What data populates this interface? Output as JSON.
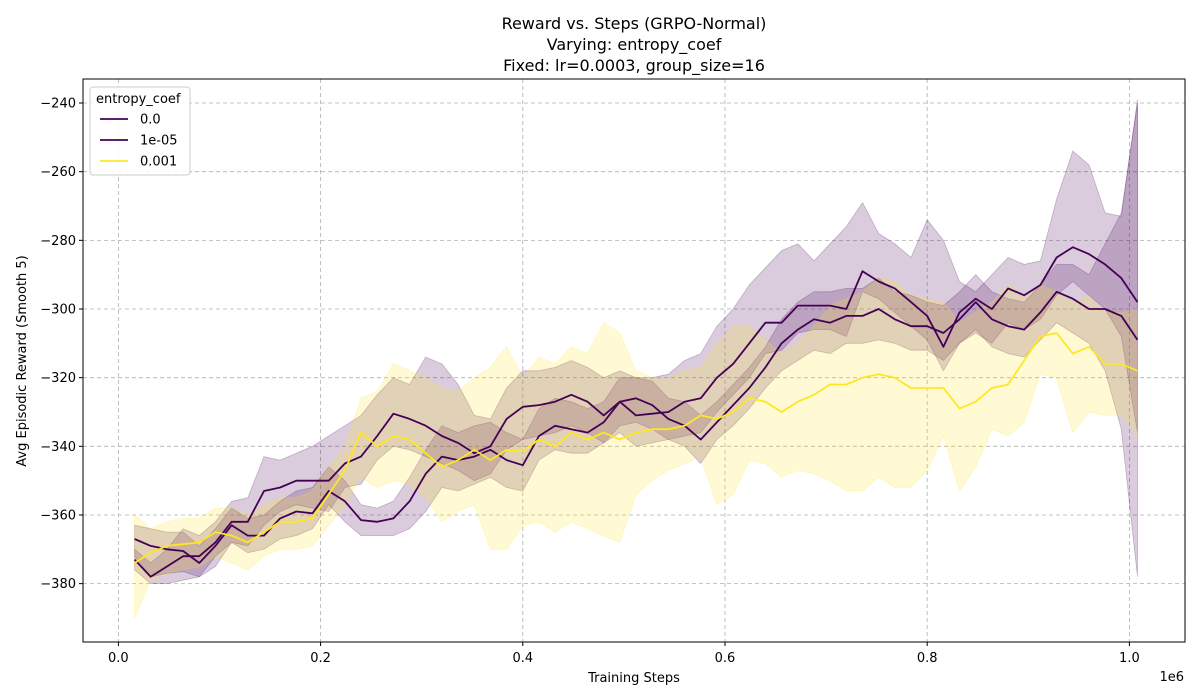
{
  "chart_data": {
    "type": "line",
    "title_lines": [
      "Reward vs. Steps (GRPO-Normal)",
      "Varying: entropy_coef",
      "Fixed: lr=0.0003, group_size=16"
    ],
    "xlabel": "Training Steps",
    "ylabel": "Avg Episodic Reward (Smooth 5)",
    "x_offset_label": "1e6",
    "xlim": [
      -0.035,
      1.055
    ],
    "ylim": [
      -397,
      -233
    ],
    "xticks": [
      0.0,
      0.2,
      0.4,
      0.6,
      0.8,
      1.0
    ],
    "xtick_labels": [
      "0.0",
      "0.2",
      "0.4",
      "0.6",
      "0.8",
      "1.0"
    ],
    "yticks": [
      -380,
      -360,
      -340,
      -320,
      -300,
      -280,
      -260,
      -240
    ],
    "ytick_labels": [
      "−380",
      "−360",
      "−340",
      "−320",
      "−300",
      "−280",
      "−260",
      "−240"
    ],
    "grid": true,
    "legend": {
      "title": "entropy_coef",
      "placement": "upper-left"
    },
    "x": [
      0.016,
      0.032,
      0.048,
      0.064,
      0.08,
      0.096,
      0.112,
      0.128,
      0.144,
      0.16,
      0.176,
      0.192,
      0.208,
      0.224,
      0.24,
      0.256,
      0.272,
      0.288,
      0.304,
      0.32,
      0.336,
      0.352,
      0.368,
      0.384,
      0.4,
      0.416,
      0.432,
      0.448,
      0.464,
      0.48,
      0.496,
      0.512,
      0.528,
      0.544,
      0.56,
      0.576,
      0.592,
      0.608,
      0.624,
      0.64,
      0.656,
      0.672,
      0.688,
      0.704,
      0.72,
      0.736,
      0.752,
      0.768,
      0.784,
      0.8,
      0.816,
      0.832,
      0.848,
      0.864,
      0.88,
      0.896,
      0.912,
      0.928,
      0.944,
      0.96,
      0.976,
      0.992,
      1.008
    ],
    "series": [
      {
        "name": "0.0",
        "color": "#440154",
        "band_color": "#440154",
        "band_opacity": 0.2,
        "values": [
          -367,
          -369,
          -370,
          -370.5,
          -374,
          -369,
          -363,
          -366,
          -366,
          -361,
          -359,
          -359.5,
          -353,
          -356,
          -361.5,
          -362,
          -361,
          -356,
          -348,
          -343,
          -344,
          -343,
          -341,
          -344,
          -345.5,
          -337,
          -334,
          -335,
          -336,
          -333,
          -327,
          -326,
          -328,
          -332,
          -334,
          -338,
          -333,
          -328,
          -323,
          -317,
          -310,
          -306,
          -303,
          -304,
          -302,
          -302,
          -300,
          -303,
          -305,
          -305,
          -307,
          -303,
          -298,
          -303,
          -305,
          -306,
          -301,
          -295,
          -297,
          -300,
          -300,
          -302,
          -309
        ],
        "lower": [
          -372,
          -378,
          -377,
          -376.5,
          -378,
          -375,
          -368,
          -371,
          -370,
          -367,
          -366,
          -364,
          -357,
          -362,
          -366,
          -366,
          -366,
          -364,
          -359,
          -352,
          -353,
          -351,
          -349,
          -352,
          -353,
          -344,
          -341,
          -342,
          -342,
          -339,
          -334,
          -333,
          -335,
          -338,
          -340,
          -345,
          -338,
          -334,
          -329,
          -323,
          -318,
          -315,
          -312,
          -313,
          -310,
          -310,
          -309,
          -310,
          -312,
          -312,
          -315,
          -310,
          -306,
          -311,
          -313,
          -314,
          -309,
          -304,
          -307,
          -310,
          -318,
          -335,
          -378
        ],
        "upper": [
          -363,
          -364,
          -365,
          -365,
          -369,
          -364,
          -358,
          -361,
          -360,
          -356,
          -353,
          -352,
          -346,
          -350,
          -357,
          -358,
          -356,
          -349,
          -341,
          -334,
          -336,
          -334,
          -333,
          -336,
          -338,
          -329,
          -326,
          -327,
          -329,
          -327,
          -320,
          -320,
          -321,
          -326,
          -327,
          -331,
          -327,
          -322,
          -317,
          -311,
          -303,
          -298,
          -295,
          -295,
          -294,
          -294,
          -291,
          -295,
          -296,
          -298,
          -299,
          -295,
          -290,
          -295,
          -297,
          -298,
          -293,
          -287,
          -287,
          -290,
          -281,
          -272,
          -240
        ]
      },
      {
        "name": "1e-05",
        "color": "#440154",
        "band_color": "#440154",
        "band_opacity": 0.2,
        "values": [
          -373,
          -378,
          -375,
          -372,
          -372,
          -368,
          -362,
          -362,
          -353,
          -352,
          -350,
          -350,
          -350,
          -345,
          -343,
          -337,
          -330.5,
          -332,
          -334,
          -337,
          -339,
          -342,
          -340,
          -332,
          -328.5,
          -328,
          -327,
          -325,
          -327,
          -331,
          -327,
          -331,
          -330.5,
          -330,
          -327,
          -326,
          -320,
          -316,
          -310,
          -304,
          -304,
          -299,
          -299,
          -299,
          -300,
          -289,
          -292,
          -294,
          -298,
          -302,
          -311,
          -301,
          -297,
          -300,
          -294,
          -296,
          -293,
          -285,
          -282,
          -284,
          -287,
          -291,
          -298
        ],
        "lower": [
          -376,
          -380,
          -380,
          -379,
          -378,
          -372,
          -368,
          -369,
          -363,
          -359,
          -357,
          -358,
          -359,
          -352,
          -351,
          -344,
          -340,
          -341,
          -343,
          -345,
          -347,
          -350,
          -348,
          -341,
          -338,
          -337,
          -336,
          -334,
          -336,
          -339,
          -336,
          -340,
          -339,
          -338,
          -337,
          -336,
          -330,
          -325,
          -320,
          -313,
          -312,
          -307,
          -306,
          -306,
          -308,
          -295,
          -297,
          -301,
          -305,
          -309,
          -318,
          -310,
          -307,
          -310,
          -304,
          -306,
          -303,
          -296,
          -292,
          -296,
          -300,
          -308,
          -336
        ],
        "upper": [
          -370,
          -374,
          -370,
          -364,
          -366,
          -362,
          -356,
          -355,
          -343,
          -344,
          -342,
          -340,
          -337,
          -334,
          -331,
          -325,
          -320,
          -322,
          -314,
          -316,
          -322,
          -331,
          -332,
          -323,
          -318,
          -318,
          -317,
          -315,
          -317,
          -320,
          -318,
          -320,
          -320,
          -319,
          -315,
          -313,
          -305,
          -300,
          -293,
          -288,
          -283,
          -281,
          -286,
          -281,
          -276,
          -269,
          -278,
          -281,
          -285,
          -274,
          -280,
          -292,
          -295,
          -290,
          -285,
          -287,
          -286,
          -268,
          -254,
          -258,
          -272,
          -273,
          -239
        ]
      },
      {
        "name": "0.001",
        "color": "#fde725",
        "band_color": "#fde725",
        "band_opacity": 0.2,
        "values": [
          -374,
          -371,
          -369,
          -368.5,
          -368,
          -365,
          -366,
          -368,
          -365,
          -362,
          -362,
          -361,
          -354,
          -347,
          -336,
          -340,
          -337,
          -338,
          -342,
          -346,
          -344,
          -341,
          -344,
          -341,
          -341.5,
          -338,
          -340,
          -336,
          -338,
          -336,
          -338,
          -336,
          -335,
          -335,
          -334,
          -331,
          -332,
          -330,
          -326,
          -327,
          -330,
          -327,
          -325,
          -322,
          -322,
          -320,
          -319,
          -320,
          -323,
          -323,
          -323,
          -329,
          -327,
          -323,
          -322,
          -315,
          -308,
          -307,
          -313,
          -311,
          -316,
          -316,
          -318
        ],
        "lower": [
          -390,
          -379,
          -377,
          -376,
          -375,
          -372,
          -374,
          -376,
          -372,
          -370,
          -370,
          -369,
          -363,
          -357,
          -349,
          -352,
          -350,
          -351,
          -355,
          -362,
          -359,
          -357,
          -370,
          -370,
          -363,
          -362,
          -365,
          -362,
          -364,
          -366,
          -368,
          -354,
          -350,
          -347,
          -345,
          -343,
          -357,
          -354,
          -344,
          -345,
          -349,
          -347,
          -348,
          -350,
          -353,
          -353,
          -349,
          -352,
          -352,
          -347,
          -337,
          -353,
          -346,
          -335,
          -337,
          -333,
          -319,
          -320,
          -336,
          -330,
          -331,
          -331,
          -337
        ],
        "upper": [
          -360,
          -364,
          -362,
          -361,
          -361,
          -358,
          -358,
          -360,
          -357,
          -355,
          -355,
          -353,
          -346,
          -340,
          -326,
          -324,
          -316,
          -318,
          -320,
          -323,
          -324,
          -320,
          -317,
          -311,
          -320,
          -314,
          -316,
          -311,
          -313,
          -304,
          -307,
          -318,
          -320,
          -320,
          -318,
          -317,
          -310,
          -305,
          -305,
          -309,
          -313,
          -310,
          -305,
          -299,
          -297,
          -295,
          -291,
          -292,
          -296,
          -297,
          -298,
          -304,
          -301,
          -298,
          -293,
          -296,
          -293,
          -295,
          -298,
          -296,
          -301,
          -301,
          -300
        ]
      }
    ]
  }
}
